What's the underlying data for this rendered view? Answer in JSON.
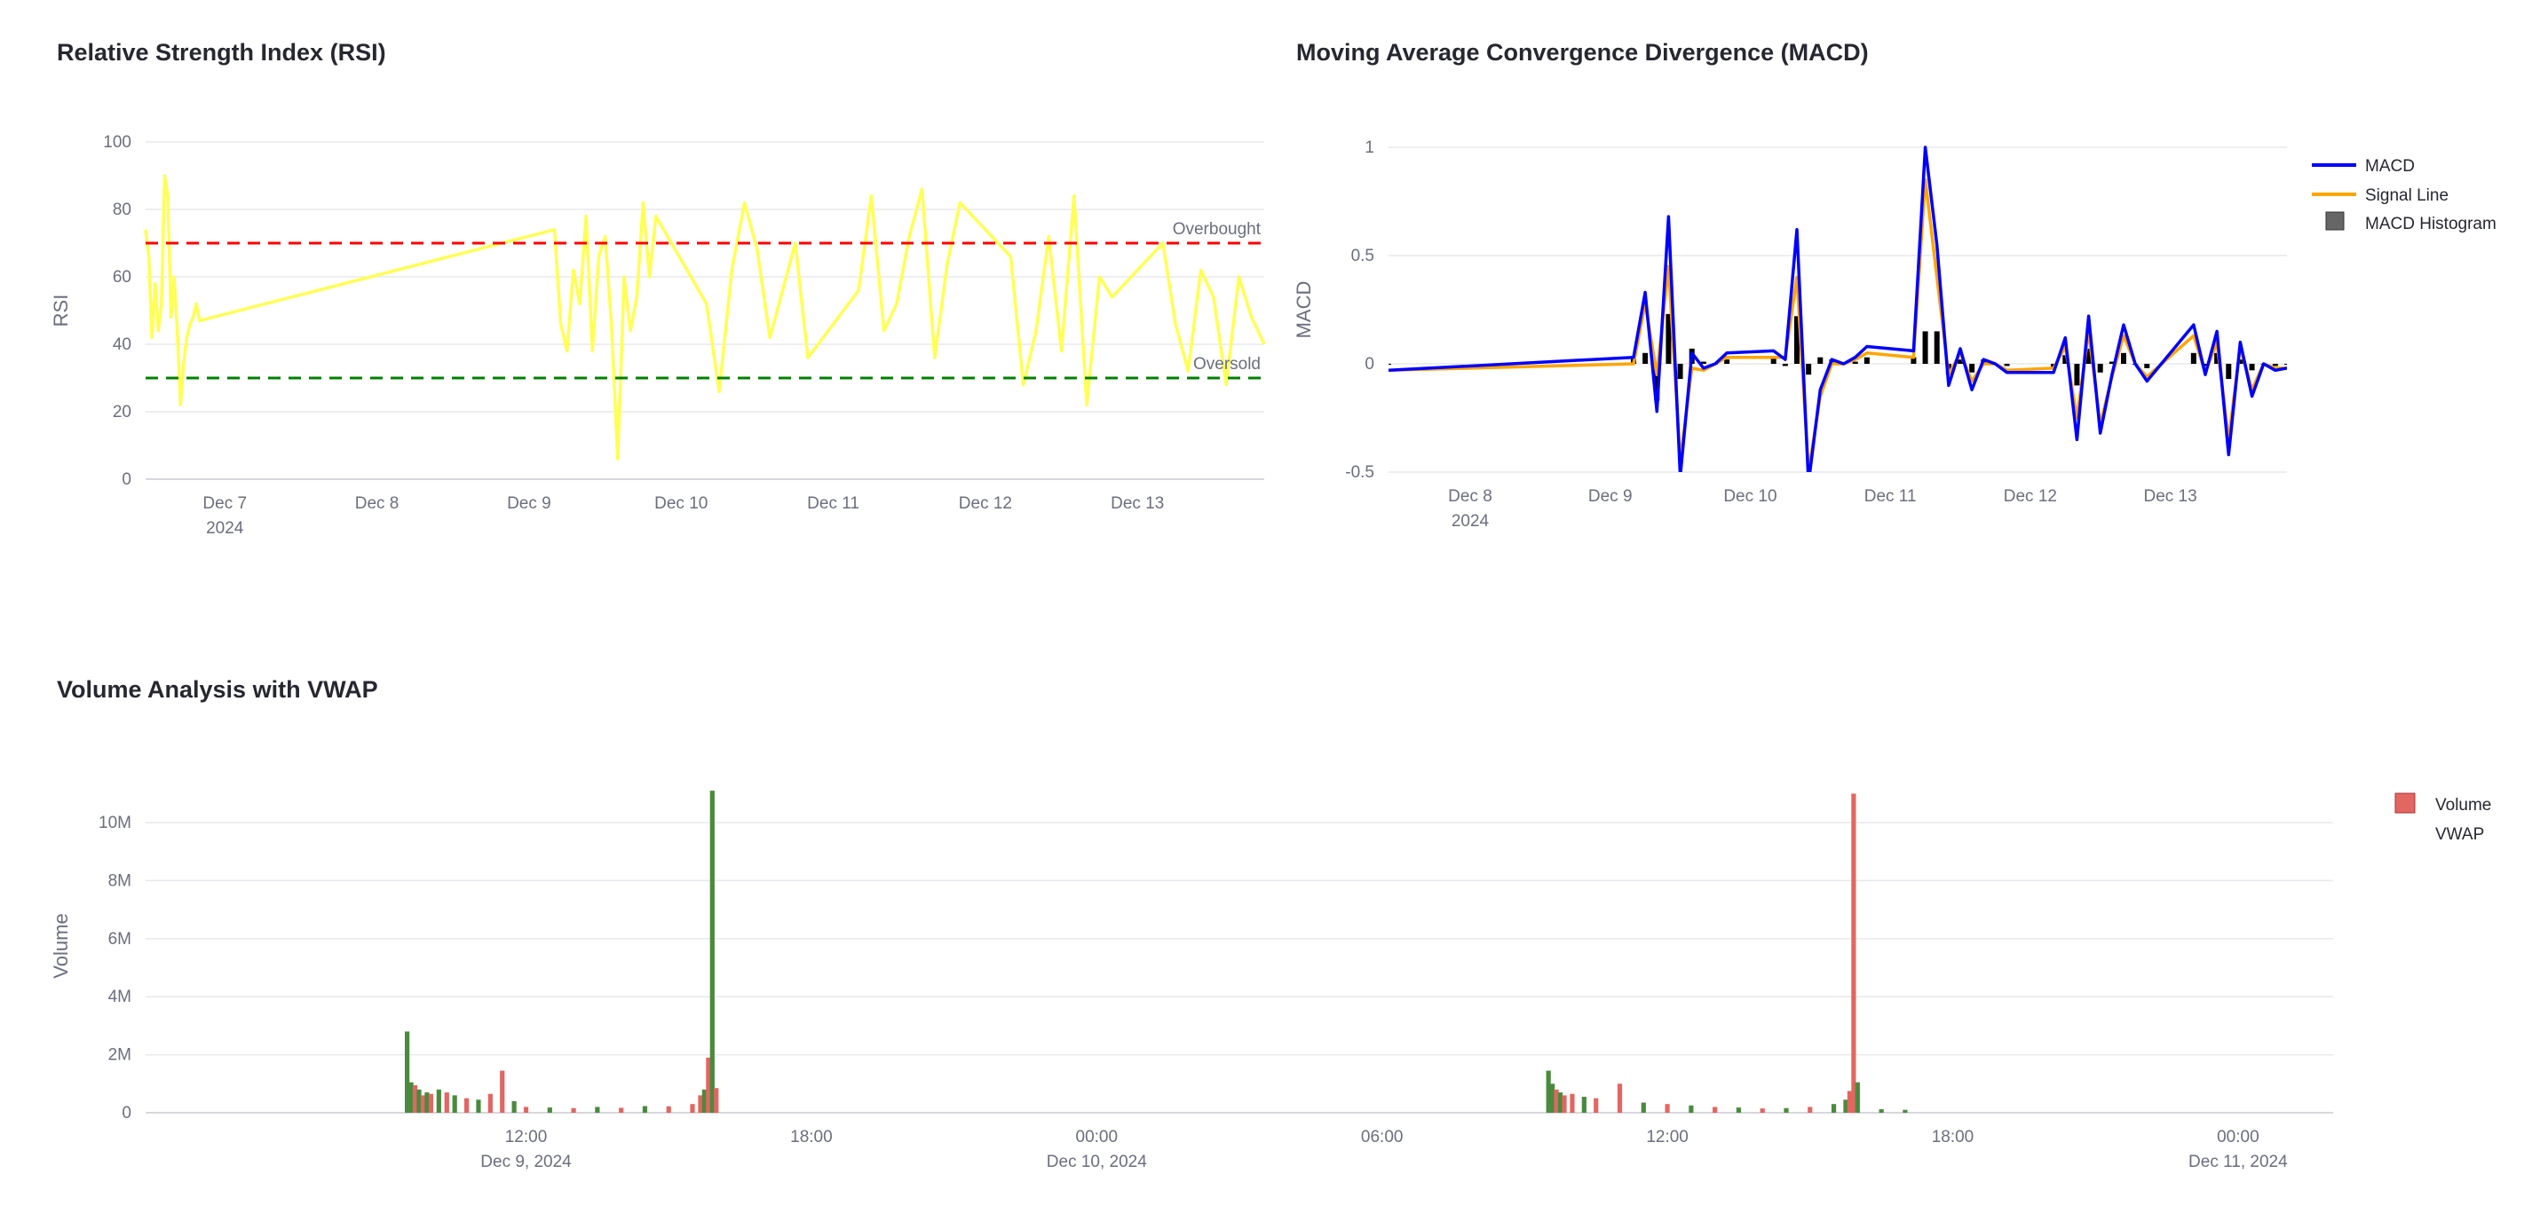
{
  "rsi_panel": {
    "title": "Relative Strength Index (RSI)"
  },
  "macd_panel": {
    "title": "Moving Average Convergence Divergence (MACD)"
  },
  "volume_panel": {
    "title": "Volume Analysis with VWAP"
  },
  "chart_data": [
    {
      "id": "rsi",
      "type": "line",
      "title": "Relative Strength Index (RSI)",
      "ylabel": "RSI",
      "ylim": [
        0,
        100
      ],
      "yticks": [
        0,
        20,
        40,
        60,
        80,
        100
      ],
      "xlim": [
        "2024-12-06 11:30",
        "2024-12-13 20:00"
      ],
      "xticks": [
        {
          "x": "2024-12-07",
          "label": "Dec 7",
          "sub": "2024"
        },
        {
          "x": "2024-12-08",
          "label": "Dec 8"
        },
        {
          "x": "2024-12-09",
          "label": "Dec 9"
        },
        {
          "x": "2024-12-10",
          "label": "Dec 10"
        },
        {
          "x": "2024-12-11",
          "label": "Dec 11"
        },
        {
          "x": "2024-12-12",
          "label": "Dec 12"
        },
        {
          "x": "2024-12-13",
          "label": "Dec 13"
        }
      ],
      "colors": {
        "line": "#ffff55",
        "overbought": "#ff0000",
        "oversold": "#008000"
      },
      "hlines": [
        {
          "y": 70,
          "label": "Overbought",
          "color": "#ff0000"
        },
        {
          "y": 30,
          "label": "Oversold",
          "color": "#008000"
        }
      ],
      "series": [
        {
          "x": [
            "2024-12-06 11:30",
            "2024-12-06 12:00",
            "2024-12-06 12:30",
            "2024-12-06 13:00",
            "2024-12-06 13:30",
            "2024-12-06 14:00",
            "2024-12-06 14:30",
            "2024-12-06 15:00",
            "2024-12-06 15:30",
            "2024-12-06 16:00",
            "2024-12-06 16:30",
            "2024-12-06 17:00",
            "2024-12-06 17:30",
            "2024-12-06 18:00",
            "2024-12-06 18:30",
            "2024-12-06 19:00",
            "2024-12-06 19:30",
            "2024-12-06 20:00",
            "2024-12-09 04:00",
            "2024-12-09 05:00",
            "2024-12-09 06:00",
            "2024-12-09 07:00",
            "2024-12-09 08:00",
            "2024-12-09 09:00",
            "2024-12-09 10:00",
            "2024-12-09 11:00",
            "2024-12-09 12:00",
            "2024-12-09 13:00",
            "2024-12-09 14:00",
            "2024-12-09 15:00",
            "2024-12-09 16:00",
            "2024-12-09 17:00",
            "2024-12-09 18:00",
            "2024-12-09 19:00",
            "2024-12-09 20:00",
            "2024-12-10 04:00",
            "2024-12-10 06:00",
            "2024-12-10 08:00",
            "2024-12-10 10:00",
            "2024-12-10 12:00",
            "2024-12-10 14:00",
            "2024-12-10 16:00",
            "2024-12-10 18:00",
            "2024-12-10 20:00",
            "2024-12-11 04:00",
            "2024-12-11 06:00",
            "2024-12-11 08:00",
            "2024-12-11 10:00",
            "2024-12-11 12:00",
            "2024-12-11 14:00",
            "2024-12-11 16:00",
            "2024-12-11 18:00",
            "2024-12-11 20:00",
            "2024-12-12 04:00",
            "2024-12-12 06:00",
            "2024-12-12 08:00",
            "2024-12-12 10:00",
            "2024-12-12 12:00",
            "2024-12-12 14:00",
            "2024-12-12 16:00",
            "2024-12-12 18:00",
            "2024-12-12 20:00",
            "2024-12-13 04:00",
            "2024-12-13 06:00",
            "2024-12-13 08:00",
            "2024-12-13 10:00",
            "2024-12-13 12:00",
            "2024-12-13 14:00",
            "2024-12-13 16:00",
            "2024-12-13 18:00",
            "2024-12-13 20:00"
          ],
          "y": [
            74,
            66,
            42,
            58,
            44,
            52,
            90,
            84,
            48,
            60,
            44,
            22,
            34,
            42,
            46,
            48,
            52,
            47,
            74,
            46,
            38,
            62,
            52,
            78,
            38,
            66,
            72,
            46,
            6,
            60,
            44,
            54,
            82,
            60,
            78,
            52,
            26,
            62,
            82,
            68,
            42,
            56,
            70,
            36,
            56,
            84,
            44,
            52,
            72,
            86,
            36,
            64,
            82,
            66,
            28,
            44,
            72,
            38,
            84,
            22,
            60,
            54,
            70,
            46,
            32,
            62,
            54,
            28,
            60,
            48,
            40
          ]
        }
      ]
    },
    {
      "id": "macd",
      "type": "line",
      "title": "Moving Average Convergence Divergence (MACD)",
      "ylabel": "MACD",
      "ylim": [
        -0.5,
        1
      ],
      "yticks": [
        -0.5,
        0,
        0.5,
        1
      ],
      "xlim": [
        "2024-12-07 10:00",
        "2024-12-13 20:00"
      ],
      "xticks": [
        {
          "x": "2024-12-08",
          "label": "Dec 8",
          "sub": "2024"
        },
        {
          "x": "2024-12-09",
          "label": "Dec 9"
        },
        {
          "x": "2024-12-10",
          "label": "Dec 10"
        },
        {
          "x": "2024-12-11",
          "label": "Dec 11"
        },
        {
          "x": "2024-12-12",
          "label": "Dec 12"
        },
        {
          "x": "2024-12-13",
          "label": "Dec 13"
        }
      ],
      "colors": {
        "macd": "#0000ff",
        "signal": "#ffa500",
        "histogram": "#000000"
      },
      "legend": {
        "placement": "top-right"
      },
      "x": [
        "2024-12-07 10:00",
        "2024-12-09 04:00",
        "2024-12-09 06:00",
        "2024-12-09 08:00",
        "2024-12-09 10:00",
        "2024-12-09 12:00",
        "2024-12-09 14:00",
        "2024-12-09 16:00",
        "2024-12-09 18:00",
        "2024-12-09 20:00",
        "2024-12-10 04:00",
        "2024-12-10 06:00",
        "2024-12-10 08:00",
        "2024-12-10 10:00",
        "2024-12-10 12:00",
        "2024-12-10 14:00",
        "2024-12-10 16:00",
        "2024-12-10 18:00",
        "2024-12-10 20:00",
        "2024-12-11 04:00",
        "2024-12-11 06:00",
        "2024-12-11 08:00",
        "2024-12-11 10:00",
        "2024-12-11 12:00",
        "2024-12-11 14:00",
        "2024-12-11 16:00",
        "2024-12-11 18:00",
        "2024-12-11 20:00",
        "2024-12-12 04:00",
        "2024-12-12 06:00",
        "2024-12-12 08:00",
        "2024-12-12 10:00",
        "2024-12-12 12:00",
        "2024-12-12 14:00",
        "2024-12-12 16:00",
        "2024-12-12 18:00",
        "2024-12-12 20:00",
        "2024-12-13 04:00",
        "2024-12-13 06:00",
        "2024-12-13 08:00",
        "2024-12-13 10:00",
        "2024-12-13 12:00",
        "2024-12-13 14:00",
        "2024-12-13 16:00",
        "2024-12-13 18:00",
        "2024-12-13 20:00"
      ],
      "series": [
        {
          "name": "MACD",
          "type": "line",
          "y": [
            -0.03,
            0.03,
            0.33,
            -0.22,
            0.68,
            -0.52,
            0.05,
            -0.02,
            0.0,
            0.05,
            0.06,
            0.02,
            0.62,
            -0.55,
            -0.12,
            0.02,
            0.0,
            0.03,
            0.08,
            0.06,
            1.0,
            0.55,
            -0.1,
            0.07,
            -0.12,
            0.02,
            0.0,
            -0.04,
            -0.04,
            0.12,
            -0.35,
            0.22,
            -0.32,
            -0.05,
            0.18,
            0.0,
            -0.08,
            0.18,
            -0.05,
            0.15,
            -0.42,
            0.1,
            -0.15,
            0.0,
            -0.03,
            -0.02
          ]
        },
        {
          "name": "Signal Line",
          "type": "line",
          "y": [
            -0.03,
            0.0,
            0.28,
            -0.05,
            0.45,
            -0.45,
            -0.02,
            -0.03,
            0.0,
            0.03,
            0.03,
            0.03,
            0.4,
            -0.5,
            -0.15,
            0.0,
            0.0,
            0.02,
            0.05,
            0.03,
            0.85,
            0.4,
            -0.05,
            0.05,
            -0.08,
            0.0,
            0.0,
            -0.03,
            -0.02,
            0.08,
            -0.25,
            0.15,
            -0.28,
            -0.06,
            0.13,
            0.0,
            -0.06,
            0.13,
            -0.04,
            0.1,
            -0.35,
            0.08,
            -0.12,
            0.0,
            -0.02,
            -0.02
          ]
        },
        {
          "name": "MACD Histogram",
          "type": "bar",
          "y": [
            0.0,
            0.03,
            0.05,
            -0.17,
            0.23,
            -0.07,
            0.07,
            0.01,
            0.0,
            0.02,
            0.03,
            -0.01,
            0.22,
            -0.05,
            0.03,
            0.02,
            0.0,
            0.01,
            0.03,
            0.03,
            0.15,
            0.15,
            -0.05,
            0.02,
            -0.04,
            0.02,
            0.0,
            -0.01,
            -0.02,
            0.04,
            -0.1,
            0.07,
            -0.04,
            0.01,
            0.05,
            0.0,
            -0.02,
            0.05,
            -0.01,
            0.05,
            -0.07,
            0.02,
            -0.03,
            0.0,
            -0.01,
            0.0
          ]
        }
      ]
    },
    {
      "id": "volume",
      "type": "bar",
      "title": "Volume Analysis with VWAP",
      "ylabel": "Volume",
      "ylim": [
        0,
        11500000
      ],
      "yticks": [
        {
          "v": 0,
          "label": "0"
        },
        {
          "v": 2000000,
          "label": "2M"
        },
        {
          "v": 4000000,
          "label": "4M"
        },
        {
          "v": 6000000,
          "label": "6M"
        },
        {
          "v": 8000000,
          "label": "8M"
        },
        {
          "v": 10000000,
          "label": "10M"
        }
      ],
      "xlim": [
        "2024-12-09 04:00",
        "2024-12-11 02:00"
      ],
      "xticks": [
        {
          "x": "2024-12-09 12:00",
          "label": "12:00",
          "sub": "Dec 9, 2024"
        },
        {
          "x": "2024-12-09 18:00",
          "label": "18:00"
        },
        {
          "x": "2024-12-10 00:00",
          "label": "00:00",
          "sub": "Dec 10, 2024"
        },
        {
          "x": "2024-12-10 06:00",
          "label": "06:00"
        },
        {
          "x": "2024-12-10 12:00",
          "label": "12:00"
        },
        {
          "x": "2024-12-10 18:00",
          "label": "18:00"
        },
        {
          "x": "2024-12-11 00:00",
          "label": "00:00",
          "sub": "Dec 11, 2024"
        }
      ],
      "colors": {
        "up": "#4a8a3e",
        "down": "#e26661"
      },
      "legend": {
        "placement": "top-right"
      },
      "series": [
        {
          "name": "Volume",
          "type": "bar",
          "x": [
            "2024-12-09 09:30",
            "2024-12-09 09:35",
            "2024-12-09 09:40",
            "2024-12-09 09:45",
            "2024-12-09 09:50",
            "2024-12-09 09:55",
            "2024-12-09 10:00",
            "2024-12-09 10:10",
            "2024-12-09 10:20",
            "2024-12-09 10:30",
            "2024-12-09 10:45",
            "2024-12-09 11:00",
            "2024-12-09 11:15",
            "2024-12-09 11:30",
            "2024-12-09 11:45",
            "2024-12-09 12:00",
            "2024-12-09 12:30",
            "2024-12-09 13:00",
            "2024-12-09 13:30",
            "2024-12-09 14:00",
            "2024-12-09 14:30",
            "2024-12-09 15:00",
            "2024-12-09 15:30",
            "2024-12-09 15:40",
            "2024-12-09 15:45",
            "2024-12-09 15:50",
            "2024-12-09 15:55",
            "2024-12-09 16:00",
            "2024-12-10 09:30",
            "2024-12-10 09:35",
            "2024-12-10 09:40",
            "2024-12-10 09:45",
            "2024-12-10 09:50",
            "2024-12-10 10:00",
            "2024-12-10 10:15",
            "2024-12-10 10:30",
            "2024-12-10 11:00",
            "2024-12-10 11:30",
            "2024-12-10 12:00",
            "2024-12-10 12:30",
            "2024-12-10 13:00",
            "2024-12-10 13:30",
            "2024-12-10 14:00",
            "2024-12-10 14:30",
            "2024-12-10 15:00",
            "2024-12-10 15:30",
            "2024-12-10 15:45",
            "2024-12-10 15:50",
            "2024-12-10 15:55",
            "2024-12-10 16:00",
            "2024-12-10 16:30",
            "2024-12-10 17:00"
          ],
          "y": [
            2800000,
            1050000,
            950000,
            800000,
            600000,
            700000,
            650000,
            800000,
            700000,
            600000,
            500000,
            450000,
            650000,
            1450000,
            400000,
            200000,
            180000,
            160000,
            200000,
            170000,
            230000,
            220000,
            300000,
            600000,
            800000,
            1900000,
            11100000,
            850000,
            1450000,
            1000000,
            800000,
            700000,
            600000,
            650000,
            550000,
            500000,
            1000000,
            350000,
            300000,
            250000,
            200000,
            180000,
            150000,
            160000,
            200000,
            300000,
            450000,
            750000,
            11000000,
            1050000,
            120000,
            100000
          ],
          "direction": [
            "up",
            "up",
            "down",
            "up",
            "down",
            "up",
            "down",
            "up",
            "down",
            "up",
            "down",
            "up",
            "down",
            "down",
            "up",
            "down",
            "up",
            "down",
            "up",
            "down",
            "up",
            "down",
            "down",
            "down",
            "up",
            "down",
            "up",
            "down",
            "up",
            "up",
            "down",
            "up",
            "down",
            "down",
            "up",
            "down",
            "down",
            "up",
            "down",
            "up",
            "down",
            "up",
            "down",
            "up",
            "down",
            "up",
            "up",
            "down",
            "down",
            "up",
            "up",
            "up"
          ]
        },
        {
          "name": "VWAP",
          "type": "line",
          "x": [],
          "y": []
        }
      ]
    }
  ]
}
